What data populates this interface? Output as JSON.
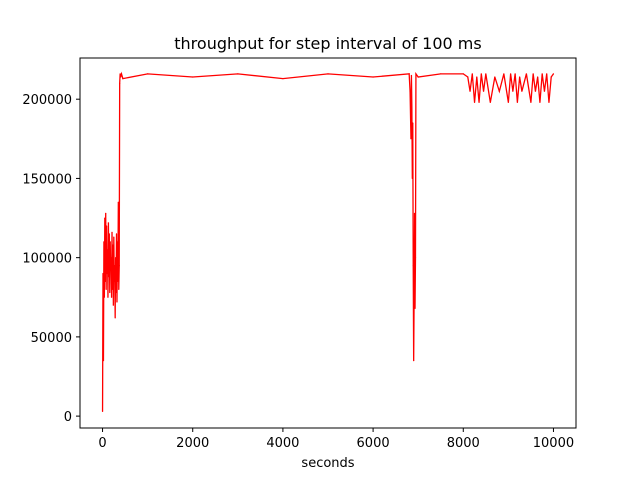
{
  "chart_data": {
    "type": "line",
    "title": "throughput for step interval of 100 ms",
    "xlabel": "seconds",
    "ylabel": "",
    "xlim": [
      -500,
      10500
    ],
    "ylim": [
      -7500,
      226000
    ],
    "xticks": [
      0,
      2000,
      4000,
      6000,
      8000,
      10000
    ],
    "yticks": [
      0,
      50000,
      100000,
      150000,
      200000
    ],
    "grid": false,
    "series": [
      {
        "color": "#ff0000",
        "x": [
          0,
          10,
          20,
          30,
          40,
          50,
          60,
          70,
          80,
          90,
          100,
          110,
          120,
          130,
          140,
          150,
          160,
          170,
          180,
          190,
          200,
          210,
          220,
          230,
          240,
          250,
          260,
          270,
          280,
          290,
          300,
          310,
          320,
          330,
          340,
          350,
          360,
          370,
          380,
          390,
          400,
          420,
          450,
          1000,
          2000,
          3000,
          4000,
          5000,
          6000,
          6800,
          6820,
          6840,
          6850,
          6860,
          6870,
          6880,
          6890,
          6900,
          6910,
          6920,
          6930,
          6940,
          6950,
          7000,
          7500,
          8000,
          8100,
          8150,
          8200,
          8250,
          8300,
          8350,
          8400,
          8450,
          8500,
          8600,
          8700,
          8800,
          8900,
          9000,
          9050,
          9100,
          9150,
          9200,
          9250,
          9300,
          9400,
          9500,
          9550,
          9600,
          9650,
          9700,
          9750,
          9800,
          9850,
          9900,
          9950,
          10000
        ],
        "y": [
          3000,
          90000,
          35000,
          110000,
          75000,
          125000,
          85000,
          128000,
          80000,
          120000,
          90000,
          105000,
          75000,
          122000,
          88000,
          115000,
          78000,
          110000,
          92000,
          100000,
          75000,
          116000,
          80000,
          108000,
          70000,
          113000,
          85000,
          95000,
          62000,
          100000,
          78000,
          115000,
          72000,
          110000,
          85000,
          135000,
          80000,
          95000,
          210000,
          216000,
          214000,
          216000,
          213000,
          216000,
          214000,
          216000,
          213000,
          216000,
          214000,
          216000,
          205000,
          175000,
          215000,
          195000,
          150000,
          185000,
          95000,
          35000,
          75000,
          128000,
          68000,
          100000,
          216000,
          214000,
          216000,
          216000,
          214000,
          205000,
          216000,
          198000,
          214000,
          198000,
          216000,
          205000,
          216000,
          198000,
          214000,
          205000,
          216000,
          198000,
          216000,
          205000,
          216000,
          198000,
          214000,
          205000,
          216000,
          198000,
          216000,
          205000,
          214000,
          198000,
          216000,
          205000,
          216000,
          198000,
          214000,
          216000
        ]
      }
    ]
  }
}
